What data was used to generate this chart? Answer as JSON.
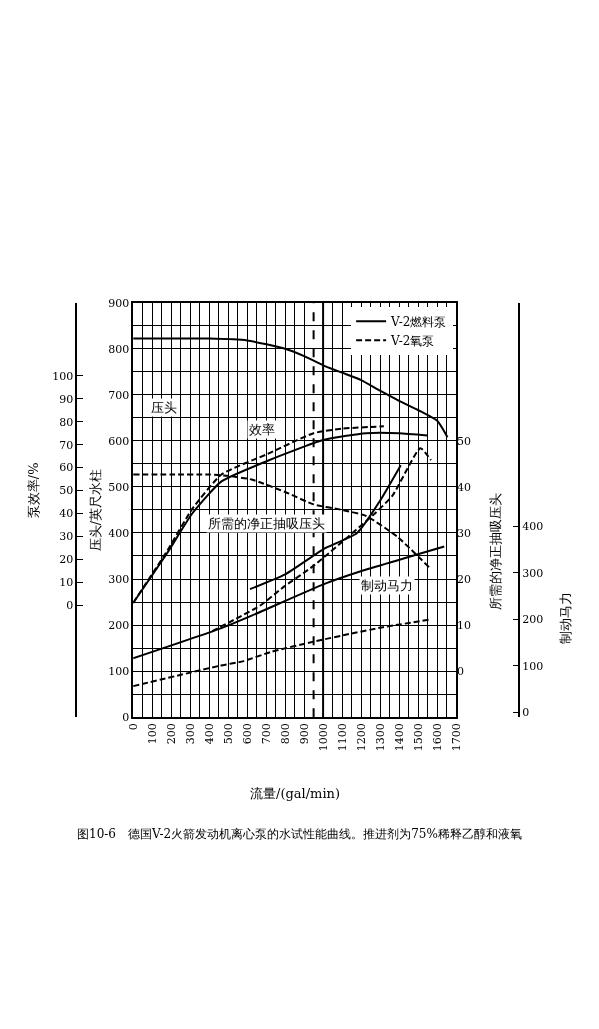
{
  "chart_data": [
    {
      "type": "line",
      "title": "图10-6　德国V-2火箭发动机离心泵的水试性能曲线。推进剂为75%稀释乙醇和液氧",
      "xlabel": "流量/(gal/min)",
      "ylabel": "压头/英尺水柱",
      "y2label": "泵效率/%",
      "y3label": "所需的净正抽吸压头",
      "xlim": [
        0,
        1700
      ],
      "xticks": [
        0,
        100,
        200,
        300,
        400,
        500,
        600,
        700,
        800,
        900,
        1000,
        1100,
        1200,
        1300,
        1400,
        1500,
        1600,
        1700
      ],
      "ylim": [
        0,
        900
      ],
      "yticks": [
        0,
        100,
        200,
        300,
        400,
        500,
        600,
        700,
        800,
        900
      ],
      "y2lim": [
        -48.8,
        131.9
      ],
      "y2ticks": [
        0,
        10,
        20,
        30,
        40,
        50,
        60,
        70,
        80,
        90,
        100
      ],
      "y3lim": [
        -10,
        80
      ],
      "y3ticks": [
        0,
        10,
        20,
        30,
        40,
        50
      ],
      "grid": true,
      "legend": "top right",
      "series": [
        {
          "name": "V-2燃料泵",
          "color": "#000000",
          "line_style": "solid",
          "axis": "y",
          "x": [
            0,
            200,
            400,
            600,
            800,
            900,
            1000,
            1100,
            1200,
            1300,
            1400,
            1500,
            1600,
            1655
          ],
          "values": [
            822,
            822,
            822,
            818,
            800,
            784,
            764,
            748,
            732,
            709,
            687,
            667,
            644,
            608
          ]
        },
        {
          "name": "V-2氧泵",
          "color": "#000000",
          "line_style": "dashed",
          "axis": "y",
          "x": [
            0,
            200,
            400,
            500,
            624,
            800,
            950,
            1100,
            1226,
            1390,
            1562
          ],
          "values": [
            527,
            527,
            527,
            524,
            516,
            489,
            462,
            450,
            437,
            392,
            324
          ]
        },
        {
          "color": "#000000",
          "line_style": "solid",
          "axis": "y2",
          "x": [
            0,
            181,
            311,
            465,
            709,
            1000,
            1226,
            1400,
            1550
          ],
          "values": [
            1,
            23,
            40,
            54,
            63,
            72,
            75,
            75,
            74
          ]
        },
        {
          "color": "#000000",
          "line_style": "dashed",
          "axis": "y2",
          "x": [
            0,
            181,
            311,
            465,
            709,
            950,
            1100,
            1320
          ],
          "values": [
            1,
            24,
            42,
            57,
            66,
            75,
            77,
            78
          ]
        },
        {
          "color": "#000000",
          "line_style": "solid",
          "axis": "y3",
          "x": [
            615,
            800,
            1011,
            1179,
            1300,
            1409
          ],
          "values": [
            17.8,
            21,
            26.7,
            30,
            37,
            44.7
          ]
        },
        {
          "color": "#000000",
          "line_style": "dashed",
          "axis": "y3",
          "x": [
            416,
            667,
            796,
            951,
            1277,
            1367,
            1512,
            1568
          ],
          "values": [
            8.7,
            14.2,
            18.4,
            22.9,
            34.4,
            38.2,
            48.4,
            45.8
          ]
        }
      ],
      "ref_lines": [
        {
          "axis": "x",
          "value": 1000,
          "color": "#000000",
          "line_style": "solid"
        },
        {
          "axis": "x",
          "value": 950,
          "color": "#000000",
          "line_style": "dashed"
        }
      ],
      "annotations": [
        "压头",
        "效率",
        "所需的净正抽吸压头"
      ]
    },
    {
      "type": "line",
      "ylabel": "制动马力",
      "xlim": [
        0,
        1700
      ],
      "ylim": [
        -10.9,
        882.4
      ],
      "yticks": [
        0,
        100,
        200,
        300,
        400
      ],
      "tick_labels": "y",
      "series": [
        {
          "color": "#000000",
          "line_style": "solid",
          "x": [
            0,
            465,
            624,
            1011,
            1186,
            1638
          ],
          "values": [
            116,
            181,
            208,
            277,
            302,
            357
          ]
        },
        {
          "color": "#000000",
          "line_style": "dashed",
          "x": [
            0,
            456,
            582,
            727,
            951,
            1157,
            1315,
            1557
          ],
          "values": [
            56,
            100,
            110,
            130,
            152,
            170,
            183,
            199
          ]
        }
      ],
      "annotations": [
        "制动马力"
      ]
    }
  ]
}
